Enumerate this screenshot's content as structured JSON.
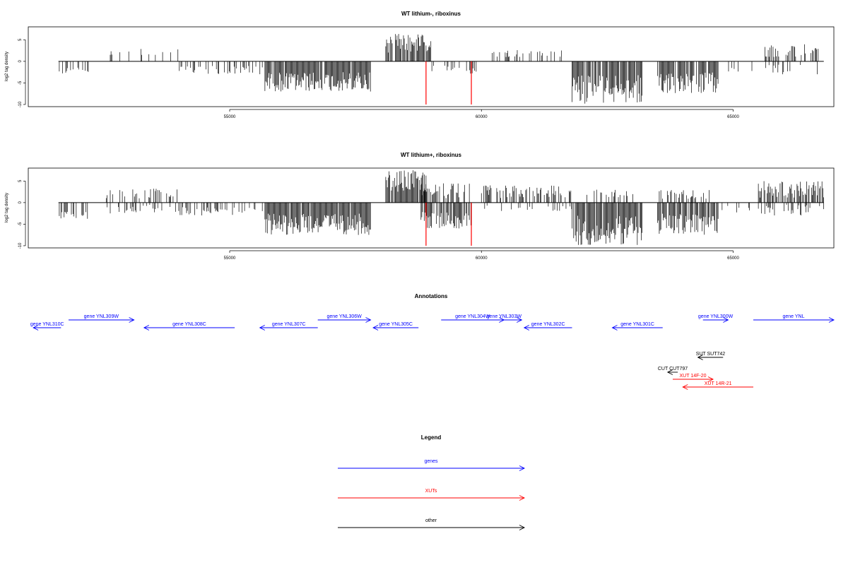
{
  "colors": {
    "genes": "#0000ff",
    "XUTs": "#ff0000",
    "other": "#000000",
    "peak": "#ff0000",
    "bars": "#000000"
  },
  "chart_data": [
    {
      "type": "bar",
      "title": "WT lithium-, riboxinus",
      "ylabel": "log2 tag density",
      "xlim": [
        51000,
        67000
      ],
      "ylim": [
        -10.5,
        8
      ],
      "xticks": [
        55000,
        60000,
        65000
      ],
      "xtick_labels": [
        "55000",
        "60000",
        "65000"
      ],
      "yticks": [
        -10,
        -5,
        0,
        5
      ],
      "ytick_labels": [
        "-10",
        "-5",
        "0",
        "5"
      ],
      "data_range": [
        51600,
        66800
      ],
      "regions": [
        {
          "from": 51600,
          "to": 52200,
          "minus": [
            1.2,
            3.0
          ],
          "density": 0.35
        },
        {
          "from": 52500,
          "to": 54000,
          "plus": [
            1.0,
            3.0
          ],
          "density": 0.18
        },
        {
          "from": 54000,
          "to": 55700,
          "minus": [
            1.0,
            3.0
          ],
          "density": 0.35
        },
        {
          "from": 55700,
          "to": 57800,
          "minus": [
            2.5,
            7.0
          ],
          "density": 0.95
        },
        {
          "from": 57800,
          "to": 58100,
          "minus": [
            0.5,
            2.0
          ],
          "density": 0.15
        },
        {
          "from": 58100,
          "to": 59000,
          "plus": [
            2.0,
            6.5
          ],
          "density": 0.9
        },
        {
          "from": 59000,
          "to": 59900,
          "minus": [
            1.0,
            3.0
          ],
          "density": 0.25
        },
        {
          "from": 60200,
          "to": 61600,
          "plus": [
            1.0,
            3.0
          ],
          "density": 0.25
        },
        {
          "from": 61800,
          "to": 63200,
          "minus": [
            3.0,
            10.0
          ],
          "density": 0.9
        },
        {
          "from": 63500,
          "to": 64700,
          "minus": [
            2.5,
            7.5
          ],
          "density": 0.85
        },
        {
          "from": 64700,
          "to": 65500,
          "minus": [
            0.5,
            2.5
          ],
          "density": 0.08
        },
        {
          "from": 65600,
          "to": 66700,
          "plus": [
            1.0,
            4.0
          ],
          "density": 0.4
        },
        {
          "from": 65600,
          "to": 66700,
          "minus": [
            0.5,
            3.0
          ],
          "density": 0.2
        }
      ],
      "peaks": [
        {
          "x": 58900,
          "y": -10
        },
        {
          "x": 59800,
          "y": -10
        }
      ]
    },
    {
      "type": "bar",
      "title": "WT lithium+, riboxinus",
      "ylabel": "log2 tag density",
      "xlim": [
        51000,
        67000
      ],
      "ylim": [
        -10.5,
        8
      ],
      "xticks": [
        55000,
        60000,
        65000
      ],
      "xtick_labels": [
        "55000",
        "60000",
        "65000"
      ],
      "yticks": [
        -10,
        -5,
        0,
        5
      ],
      "ytick_labels": [
        "-10",
        "-5",
        "0",
        "5"
      ],
      "data_range": [
        51600,
        66800
      ],
      "regions": [
        {
          "from": 51600,
          "to": 52200,
          "minus": [
            1.5,
            4.0
          ],
          "density": 0.5
        },
        {
          "from": 52500,
          "to": 54000,
          "plus": [
            1.0,
            3.5
          ],
          "density": 0.25
        },
        {
          "from": 52500,
          "to": 54000,
          "minus": [
            0.5,
            2.5
          ],
          "density": 0.2
        },
        {
          "from": 54000,
          "to": 55700,
          "minus": [
            1.0,
            3.0
          ],
          "density": 0.35
        },
        {
          "from": 55700,
          "to": 57800,
          "minus": [
            2.5,
            7.5
          ],
          "density": 0.95
        },
        {
          "from": 58100,
          "to": 58900,
          "plus": [
            2.5,
            7.5
          ],
          "density": 0.95
        },
        {
          "from": 58800,
          "to": 59800,
          "plus": [
            1.0,
            4.5
          ],
          "density": 0.6
        },
        {
          "from": 58800,
          "to": 59800,
          "minus": [
            2.0,
            6.0
          ],
          "density": 0.8
        },
        {
          "from": 60000,
          "to": 61800,
          "plus": [
            1.0,
            4.0
          ],
          "density": 0.55
        },
        {
          "from": 60000,
          "to": 61800,
          "minus": [
            0.5,
            2.0
          ],
          "density": 0.15
        },
        {
          "from": 61800,
          "to": 63200,
          "minus": [
            3.0,
            10.0
          ],
          "density": 0.95
        },
        {
          "from": 62000,
          "to": 63200,
          "plus": [
            1.0,
            3.0
          ],
          "density": 0.3
        },
        {
          "from": 63500,
          "to": 64700,
          "minus": [
            2.5,
            7.5
          ],
          "density": 0.9
        },
        {
          "from": 63500,
          "to": 64700,
          "plus": [
            0.5,
            3.0
          ],
          "density": 0.3
        },
        {
          "from": 64700,
          "to": 65500,
          "minus": [
            0.5,
            2.5
          ],
          "density": 0.1
        },
        {
          "from": 65500,
          "to": 66800,
          "plus": [
            1.0,
            5.0
          ],
          "density": 0.7
        },
        {
          "from": 65500,
          "to": 66800,
          "minus": [
            0.5,
            3.0
          ],
          "density": 0.3
        }
      ],
      "peaks": [
        {
          "x": 58900,
          "y": -10
        },
        {
          "x": 59800,
          "y": -10
        }
      ]
    }
  ],
  "annotations": {
    "title": "Annotations",
    "features": [
      {
        "label": "gene YNL310C",
        "category": "genes",
        "strand": "-",
        "start": 51100,
        "end": 51650,
        "row": 1
      },
      {
        "label": "gene YNL309W",
        "category": "genes",
        "strand": "+",
        "start": 51800,
        "end": 53100,
        "row": 0
      },
      {
        "label": "gene YNL308C",
        "category": "genes",
        "strand": "-",
        "start": 53300,
        "end": 55100,
        "row": 1
      },
      {
        "label": "gene YNL307C",
        "category": "genes",
        "strand": "-",
        "start": 55600,
        "end": 56750,
        "row": 1
      },
      {
        "label": "gene YNL306W",
        "category": "genes",
        "strand": "+",
        "start": 56750,
        "end": 57800,
        "row": 0
      },
      {
        "label": "gene YNL305C",
        "category": "genes",
        "strand": "-",
        "start": 57850,
        "end": 58750,
        "row": 1
      },
      {
        "label": "gene YNL304W",
        "category": "genes",
        "strand": "+",
        "start": 59200,
        "end": 60450,
        "row": 0
      },
      {
        "label": "gene YNL303W",
        "category": "genes",
        "strand": "+",
        "start": 60100,
        "end": 60800,
        "row": 0
      },
      {
        "label": "gene YNL302C",
        "category": "genes",
        "strand": "-",
        "start": 60850,
        "end": 61800,
        "row": 1
      },
      {
        "label": "gene YNL301C",
        "category": "genes",
        "strand": "-",
        "start": 62600,
        "end": 63600,
        "row": 1
      },
      {
        "label": "gene YNL300W",
        "category": "genes",
        "strand": "+",
        "start": 64400,
        "end": 64900,
        "row": 0
      },
      {
        "label": "gene YNL",
        "category": "genes",
        "strand": "+",
        "start": 65400,
        "end": 67000,
        "row": 0
      },
      {
        "label": "SUT SUT742",
        "category": "other",
        "strand": "-",
        "start": 64300,
        "end": 64800,
        "row": 2
      },
      {
        "label": "CUT CUT797",
        "category": "other",
        "strand": "-",
        "start": 63700,
        "end": 63900,
        "row": 3
      },
      {
        "label": "XUT 14F-20",
        "category": "XUTs",
        "strand": "+",
        "start": 63800,
        "end": 64600,
        "row": 4
      },
      {
        "label": "XUT 14R-21",
        "category": "XUTs",
        "strand": "-",
        "start": 64000,
        "end": 65400,
        "row": 5
      }
    ]
  },
  "legend": {
    "title": "Legend",
    "items": [
      {
        "label": "genes",
        "key": "genes"
      },
      {
        "label": "XUTs",
        "key": "XUTs"
      },
      {
        "label": "other",
        "key": "other"
      }
    ]
  }
}
